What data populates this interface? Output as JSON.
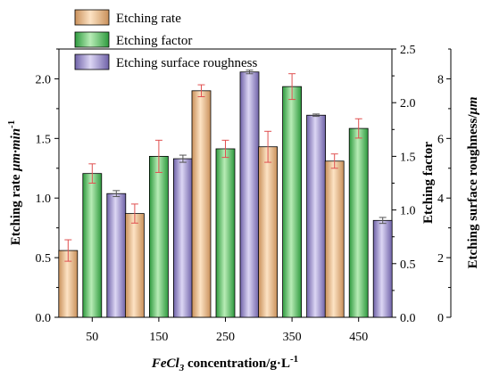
{
  "chart_data": {
    "type": "bar",
    "xlabel": {
      "main": "FeCl",
      "sub": "3",
      "rest": " concentration/g·L",
      "sup": "-1"
    },
    "categories": [
      "50",
      "150",
      "250",
      "350",
      "450"
    ],
    "axes": {
      "left": {
        "label_plain": "Etching rate ",
        "label_italic": "μm·min",
        "label_sup": "-1",
        "range": [
          0,
          2.25
        ],
        "ticks": [
          "0.0",
          "0.5",
          "1.0",
          "1.5",
          "2.0"
        ]
      },
      "right1": {
        "label": "Etching factor",
        "range": [
          0,
          2.5
        ],
        "ticks": [
          "0.0",
          "0.5",
          "1.0",
          "1.5",
          "2.0",
          "2.5"
        ]
      },
      "right2": {
        "label_plain": "Etching surface roughness/",
        "label_italic": "μm",
        "range": [
          0,
          9
        ],
        "ticks": [
          "0",
          "2",
          "4",
          "6",
          "8"
        ]
      }
    },
    "series": [
      {
        "name": "Etching rate",
        "axis": "left",
        "values": [
          0.56,
          0.87,
          1.9,
          1.43,
          1.31
        ],
        "errors": [
          0.09,
          0.08,
          0.05,
          0.13,
          0.06
        ],
        "color": "#f2c28f"
      },
      {
        "name": "Etching factor",
        "axis": "right1",
        "values": [
          1.34,
          1.5,
          1.57,
          2.15,
          1.76
        ],
        "errors": [
          0.09,
          0.15,
          0.08,
          0.12,
          0.09
        ],
        "color": "#5dc66a"
      },
      {
        "name": "Etching surface roughness",
        "axis": "right2",
        "values": [
          4.15,
          5.32,
          8.23,
          6.78,
          3.25
        ],
        "errors": [
          0.1,
          0.12,
          0.06,
          0.04,
          0.1
        ],
        "color": "#9c8fd0"
      }
    ],
    "legend_position": "top-left",
    "grid": false
  }
}
